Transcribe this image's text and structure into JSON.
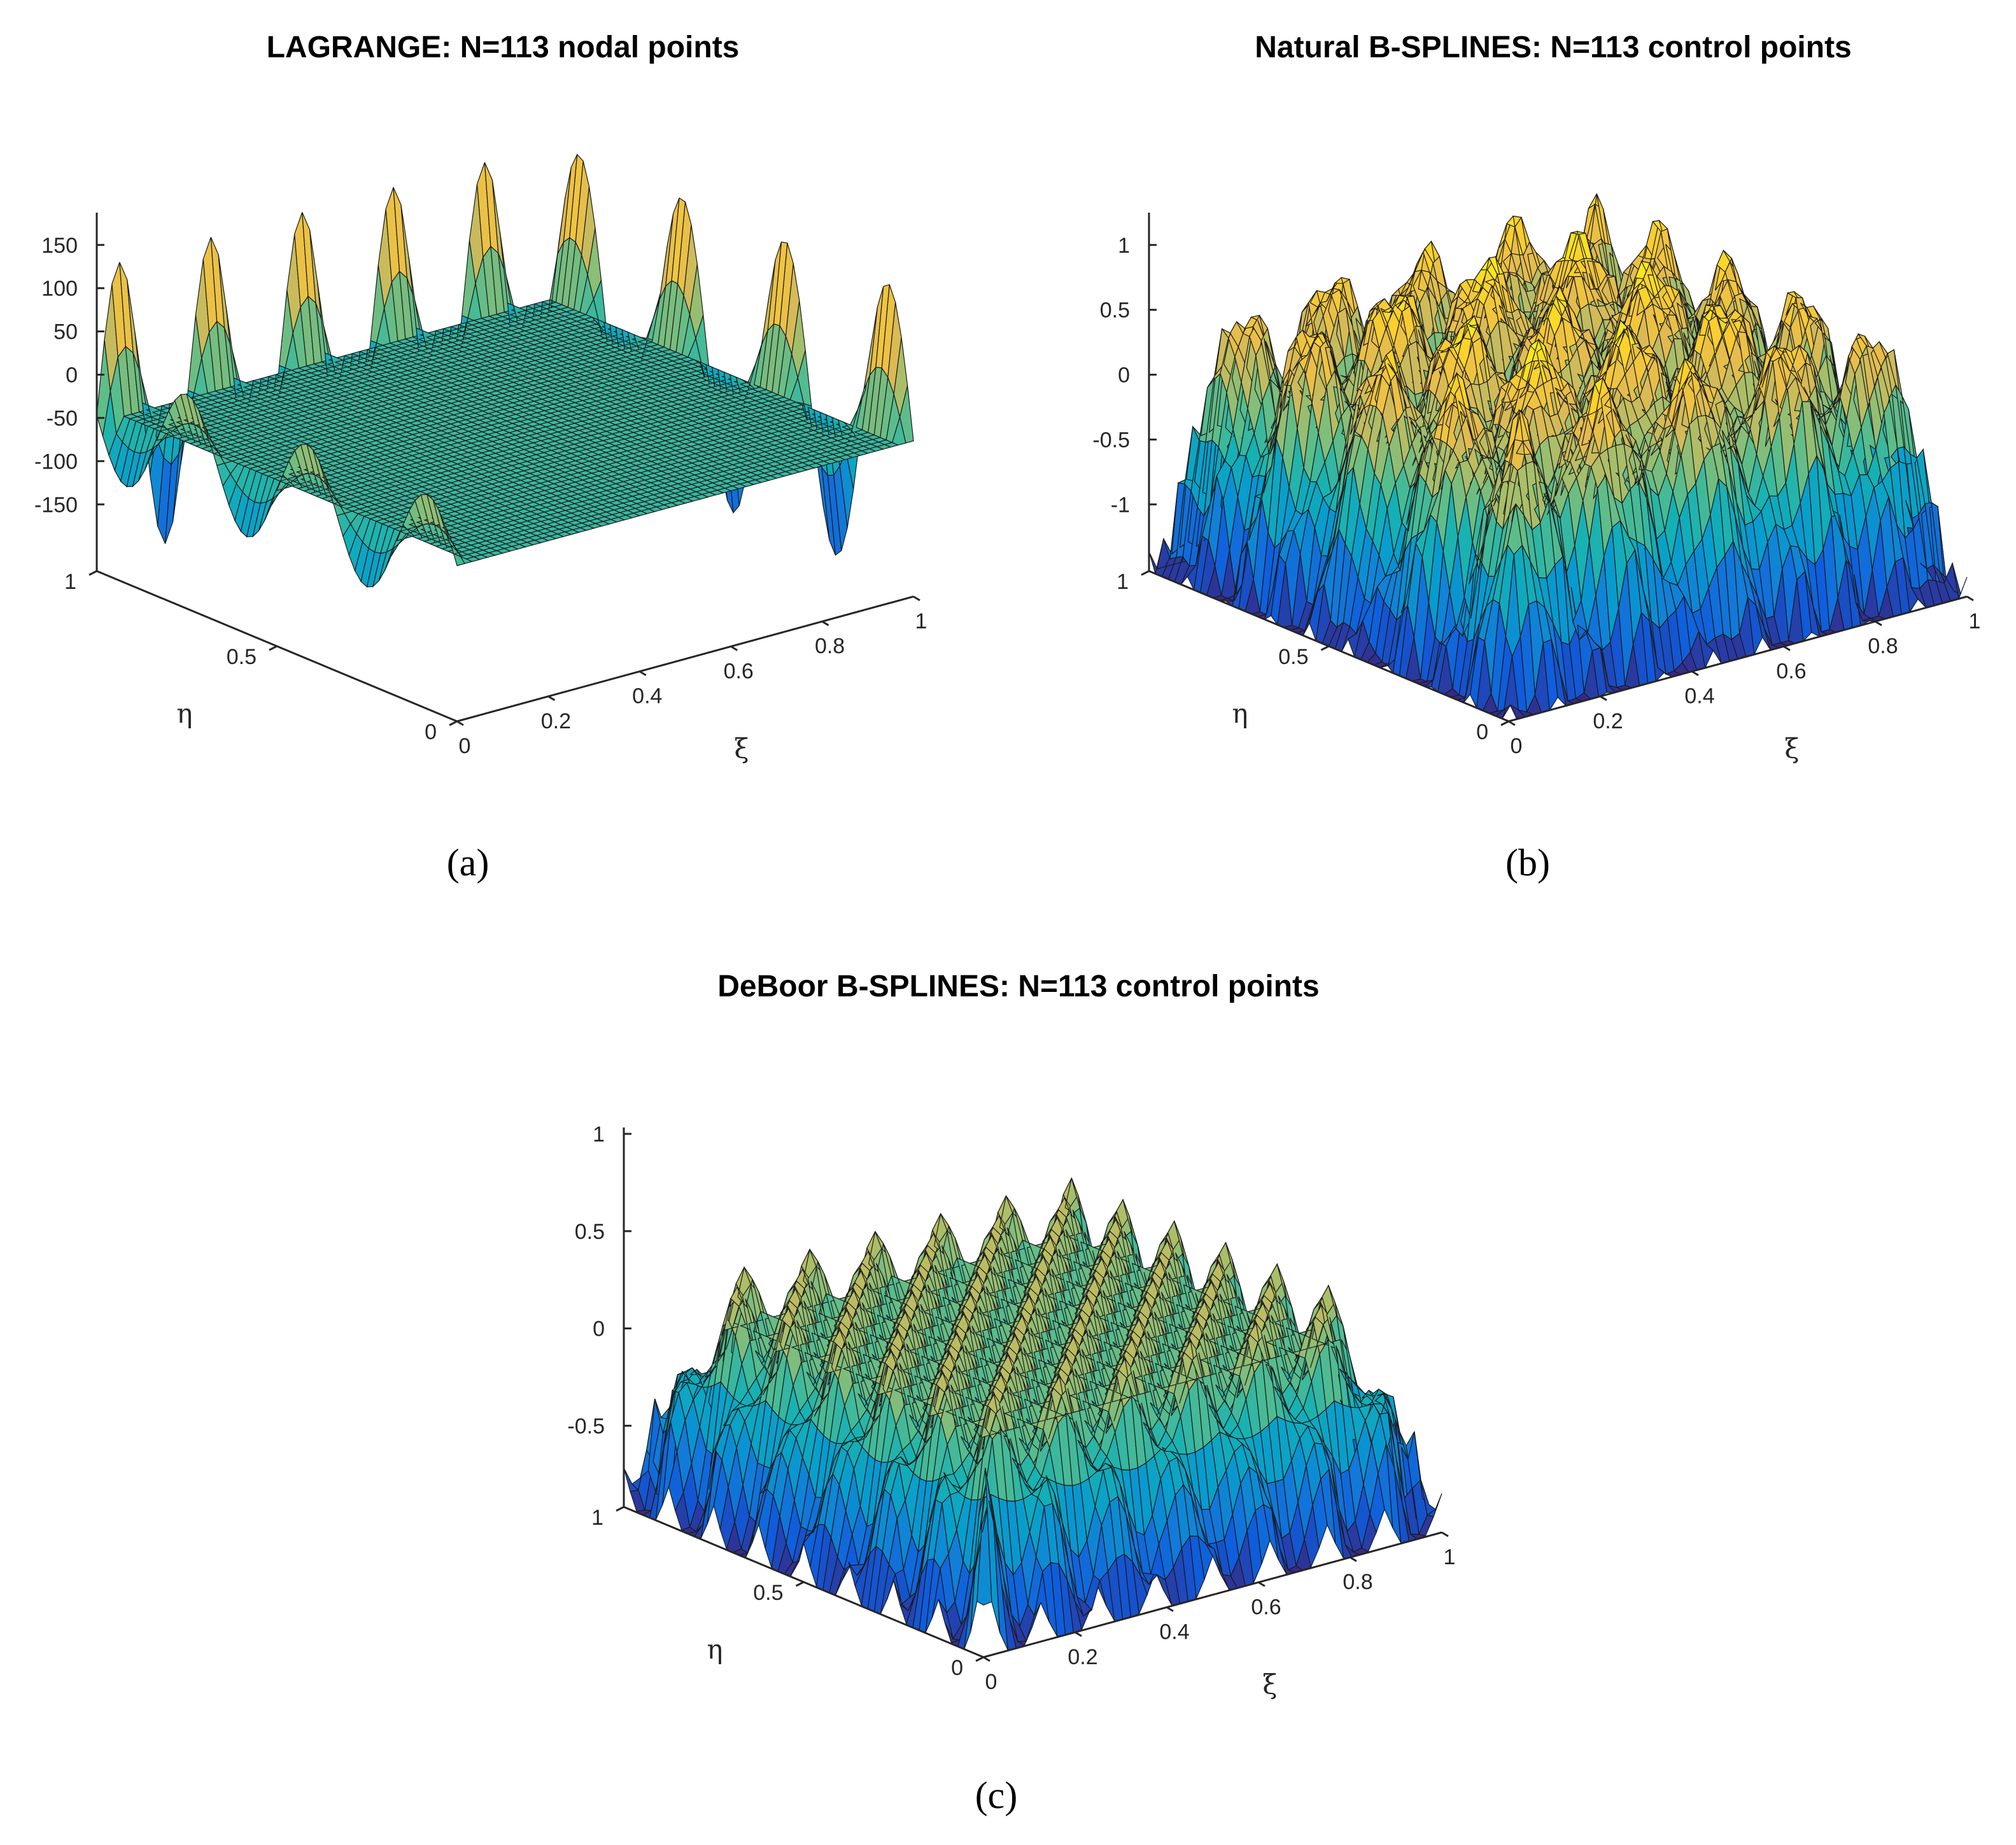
{
  "chart_data": [
    {
      "id": "a",
      "type": "surface",
      "title": "LAGRANGE: N=113 nodal points",
      "caption": "(a)",
      "xlabel": "ξ",
      "ylabel": "η",
      "zlabel": "",
      "xlim": [
        0,
        1
      ],
      "ylim": [
        0,
        1
      ],
      "zlim": [
        -180,
        180
      ],
      "x_ticks": [
        "0",
        "0.2",
        "0.4",
        "0.6",
        "0.8",
        "1"
      ],
      "y_ticks": [
        "0",
        "0.5",
        "1"
      ],
      "z_ticks": [
        "150",
        "100",
        "50",
        "0",
        "-50",
        "-100",
        "-150"
      ],
      "colormap": "parula",
      "z_min": -180,
      "z_max": 180,
      "shape": "runge-edges"
    },
    {
      "id": "b",
      "type": "surface",
      "title": "Natural B-SPLINES: N=113 control points",
      "caption": "(b)",
      "xlabel": "ξ",
      "ylabel": "η",
      "zlabel": "",
      "xlim": [
        0,
        1
      ],
      "ylim": [
        0,
        1
      ],
      "zlim": [
        -1.2,
        1.2
      ],
      "x_ticks": [
        "0",
        "0.2",
        "0.4",
        "0.6",
        "0.8",
        "1"
      ],
      "y_ticks": [
        "0",
        "0.5",
        "1"
      ],
      "z_ticks": [
        "1",
        "0.5",
        "0",
        "-0.5",
        "-1"
      ],
      "colormap": "parula",
      "z_min": -1.2,
      "z_max": 1.1,
      "shape": "domes"
    },
    {
      "id": "c",
      "type": "surface",
      "title": "DeBoor B-SPLINES: N=113 control points",
      "caption": "(c)",
      "xlabel": "ξ",
      "ylabel": "η",
      "zlabel": "",
      "xlim": [
        0,
        1
      ],
      "ylim": [
        0,
        1
      ],
      "zlim": [
        -0.6,
        1
      ],
      "x_ticks": [
        "0",
        "0.2",
        "0.4",
        "0.6",
        "0.8",
        "1"
      ],
      "y_ticks": [
        "0",
        "0.5",
        "1"
      ],
      "z_ticks": [
        "1",
        "0.5",
        "0",
        "-0.5"
      ],
      "colormap": "parula",
      "z_min": -0.6,
      "z_max": 1.0,
      "shape": "spikes"
    }
  ]
}
